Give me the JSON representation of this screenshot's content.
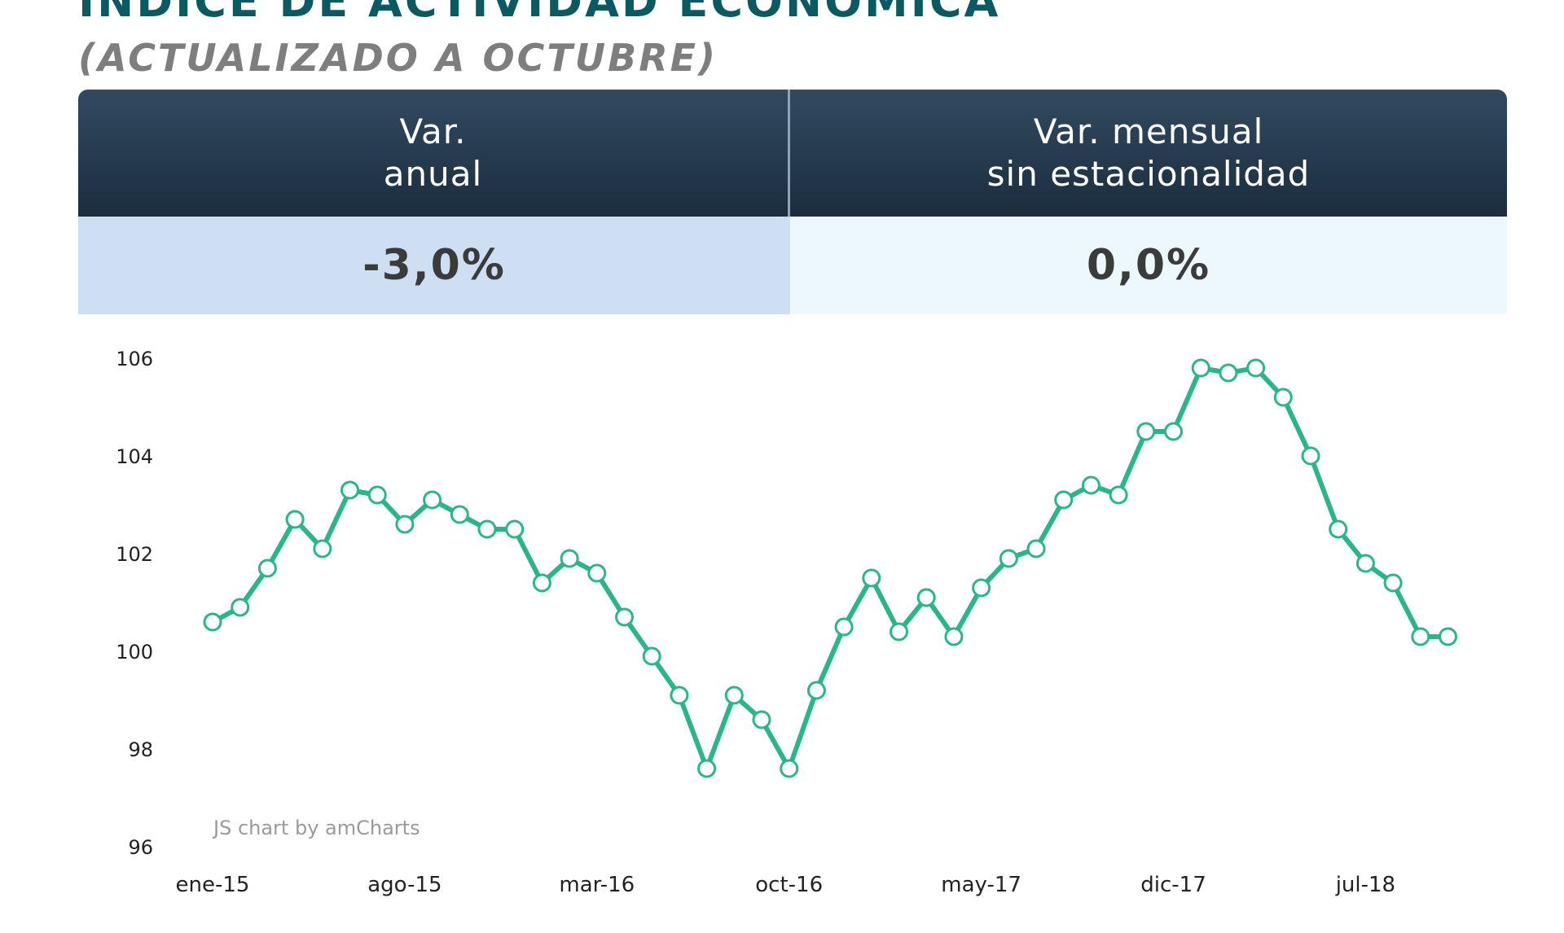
{
  "header": {
    "title": "INDICE DE ACTIVIDAD ECONOMICA",
    "subtitle": "(ACTUALIZADO A OCTUBRE)"
  },
  "stats": {
    "annual": {
      "label_line1": "Var.",
      "label_line2": "anual",
      "value": "-3,0%"
    },
    "monthly": {
      "label_line1": "Var. mensual",
      "label_line2": "sin estacionalidad",
      "value": "0,0%"
    }
  },
  "colors": {
    "line": "#2bb58a",
    "header_bg": "#1f3346",
    "title": "#0b5a63"
  },
  "chart_credit": "JS chart by amCharts",
  "chart_data": {
    "type": "line",
    "title": "",
    "xlabel": "",
    "ylabel": "",
    "ylim": [
      96,
      106
    ],
    "y_ticks": [
      "106",
      "104",
      "102",
      "100",
      "98",
      "96"
    ],
    "x_tick_labels": [
      "ene-15",
      "ago-15",
      "mar-16",
      "oct-16",
      "may-17",
      "dic-17",
      "jul-18"
    ],
    "x_tick_index": [
      0,
      7,
      14,
      21,
      28,
      35,
      42
    ],
    "grid": false,
    "legend": "none",
    "series": [
      {
        "values": [
          100.6,
          100.9,
          101.7,
          102.7,
          102.1,
          103.3,
          103.2,
          102.6,
          103.1,
          102.8,
          102.5,
          102.5,
          101.4,
          101.9,
          101.6,
          100.7,
          99.9,
          99.1,
          97.6,
          99.1,
          98.6,
          97.6,
          99.2,
          100.5,
          101.5,
          100.4,
          101.1,
          100.3,
          101.3,
          101.9,
          102.1,
          103.1,
          103.4,
          103.2,
          104.5,
          104.5,
          105.8,
          105.7,
          105.8,
          105.2,
          104.0,
          102.5,
          101.8,
          101.4,
          100.3,
          100.3
        ]
      }
    ]
  }
}
